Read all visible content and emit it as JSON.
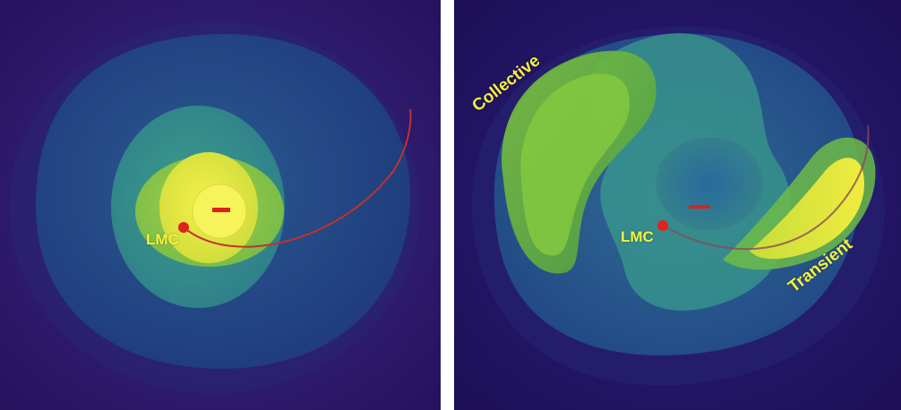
{
  "left_panel": {
    "lmc_label": "LMC"
  },
  "right_panel": {
    "lmc_label": "LMC",
    "collective_label": "Collective",
    "transient_label": "Transient"
  },
  "colors": {
    "background_purple": "#2a0f5a",
    "outer_blue": "#21407e",
    "mid_teal": "#2f8a8f",
    "green": "#7ac43f",
    "yellow": "#e4e637",
    "label_yellow": "#f7f23a",
    "orbit_red": "#c0322f",
    "marker_red": "#e0231c"
  }
}
